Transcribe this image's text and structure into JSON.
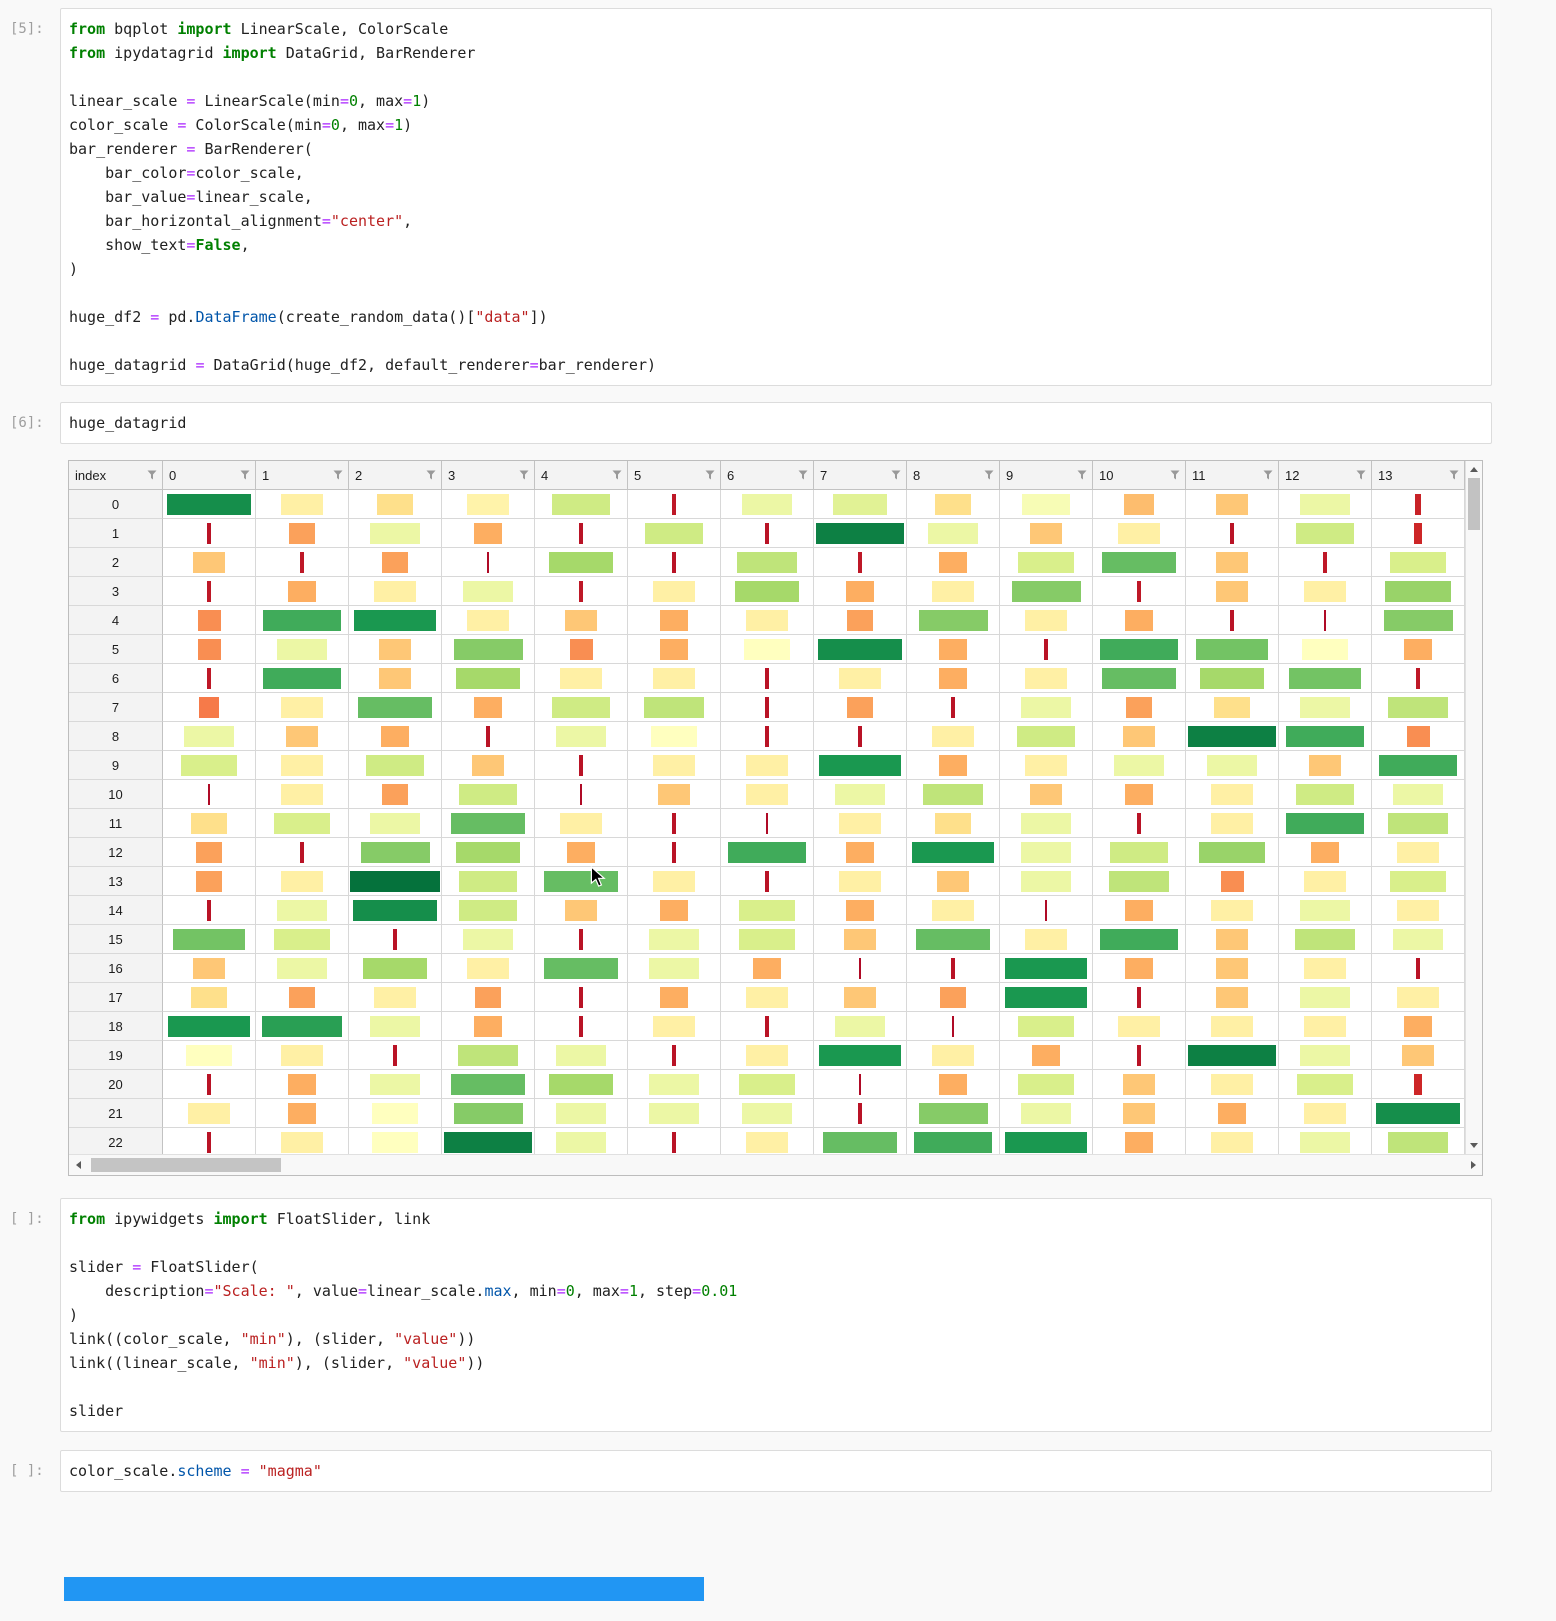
{
  "notebook": {
    "cells": [
      {
        "prompt": "[5]:",
        "lines": [
          [
            [
              "kw",
              "from"
            ],
            [
              "p",
              " bqplot "
            ],
            [
              "kw",
              "import"
            ],
            [
              "p",
              " LinearScale, ColorScale"
            ]
          ],
          [
            [
              "kw",
              "from"
            ],
            [
              "p",
              " ipydatagrid "
            ],
            [
              "kw",
              "import"
            ],
            [
              "p",
              " DataGrid, BarRenderer"
            ]
          ],
          [],
          [
            [
              "p",
              "linear_scale "
            ],
            [
              "op",
              "="
            ],
            [
              "p",
              " LinearScale(min"
            ],
            [
              "op",
              "="
            ],
            [
              "num",
              "0"
            ],
            [
              "p",
              ", max"
            ],
            [
              "op",
              "="
            ],
            [
              "num",
              "1"
            ],
            [
              "p",
              ")"
            ]
          ],
          [
            [
              "p",
              "color_scale "
            ],
            [
              "op",
              "="
            ],
            [
              "p",
              " ColorScale(min"
            ],
            [
              "op",
              "="
            ],
            [
              "num",
              "0"
            ],
            [
              "p",
              ", max"
            ],
            [
              "op",
              "="
            ],
            [
              "num",
              "1"
            ],
            [
              "p",
              ")"
            ]
          ],
          [
            [
              "p",
              "bar_renderer "
            ],
            [
              "op",
              "="
            ],
            [
              "p",
              " BarRenderer("
            ]
          ],
          [
            [
              "p",
              "    bar_color"
            ],
            [
              "op",
              "="
            ],
            [
              "p",
              "color_scale,"
            ]
          ],
          [
            [
              "p",
              "    bar_value"
            ],
            [
              "op",
              "="
            ],
            [
              "p",
              "linear_scale,"
            ]
          ],
          [
            [
              "p",
              "    bar_horizontal_alignment"
            ],
            [
              "op",
              "="
            ],
            [
              "str",
              "\"center\""
            ],
            [
              "p",
              ","
            ]
          ],
          [
            [
              "p",
              "    show_text"
            ],
            [
              "op",
              "="
            ],
            [
              "kw",
              "False"
            ],
            [
              "p",
              ","
            ]
          ],
          [
            [
              "p",
              ")"
            ]
          ],
          [],
          [
            [
              "p",
              "huge_df2 "
            ],
            [
              "op",
              "="
            ],
            [
              "p",
              " pd."
            ],
            [
              "prop",
              "DataFrame"
            ],
            [
              "p",
              "(create_random_data()["
            ],
            [
              "str",
              "\"data\""
            ],
            [
              "p",
              "])"
            ]
          ],
          [],
          [
            [
              "p",
              "huge_datagrid "
            ],
            [
              "op",
              "="
            ],
            [
              "p",
              " DataGrid(huge_df2, default_renderer"
            ],
            [
              "op",
              "="
            ],
            [
              "p",
              "bar_renderer)"
            ]
          ]
        ]
      },
      {
        "prompt": "[6]:",
        "lines": [
          [
            [
              "p",
              "huge_datagrid"
            ]
          ]
        ]
      },
      {
        "prompt": "[ ]:",
        "lines": [
          [
            [
              "kw",
              "from"
            ],
            [
              "p",
              " ipywidgets "
            ],
            [
              "kw",
              "import"
            ],
            [
              "p",
              " FloatSlider, link"
            ]
          ],
          [],
          [
            [
              "p",
              "slider "
            ],
            [
              "op",
              "="
            ],
            [
              "p",
              " FloatSlider("
            ]
          ],
          [
            [
              "p",
              "    description"
            ],
            [
              "op",
              "="
            ],
            [
              "str",
              "\"Scale: \""
            ],
            [
              "p",
              ", value"
            ],
            [
              "op",
              "="
            ],
            [
              "p",
              "linear_scale."
            ],
            [
              "prop",
              "max"
            ],
            [
              "p",
              ", min"
            ],
            [
              "op",
              "="
            ],
            [
              "num",
              "0"
            ],
            [
              "p",
              ", max"
            ],
            [
              "op",
              "="
            ],
            [
              "num",
              "1"
            ],
            [
              "p",
              ", step"
            ],
            [
              "op",
              "="
            ],
            [
              "num",
              "0.01"
            ]
          ],
          [
            [
              "p",
              ")"
            ]
          ],
          [
            [
              "p",
              "link((color_scale, "
            ],
            [
              "str",
              "\"min\""
            ],
            [
              "p",
              "), (slider, "
            ],
            [
              "str",
              "\"value\""
            ],
            [
              "p",
              "))"
            ]
          ],
          [
            [
              "p",
              "link((linear_scale, "
            ],
            [
              "str",
              "\"min\""
            ],
            [
              "p",
              "), (slider, "
            ],
            [
              "str",
              "\"value\""
            ],
            [
              "p",
              "))"
            ]
          ],
          [],
          [
            [
              "p",
              "slider"
            ]
          ]
        ]
      },
      {
        "prompt": "[ ]:",
        "lines": [
          [
            [
              "p",
              "color_scale."
            ],
            [
              "prop",
              "scheme"
            ],
            [
              "p",
              " "
            ],
            [
              "op",
              "="
            ],
            [
              "p",
              " "
            ],
            [
              "str",
              "\"magma\""
            ]
          ]
        ]
      }
    ]
  },
  "datagrid": {
    "corner_header": "index",
    "columns": [
      "0",
      "1",
      "2",
      "3",
      "4",
      "5",
      "6",
      "7",
      "8",
      "9",
      "10",
      "11",
      "12",
      "13"
    ],
    "row_labels": [
      "0",
      "1",
      "2",
      "3",
      "4",
      "5",
      "6",
      "7",
      "8",
      "9",
      "10",
      "11",
      "12",
      "13",
      "14",
      "15",
      "16",
      "17",
      "18",
      "19",
      "20",
      "21",
      "22"
    ],
    "colormap": {
      "name": "RdYlGn",
      "stops": [
        [
          0,
          "#a50026"
        ],
        [
          0.1,
          "#d73027"
        ],
        [
          0.2,
          "#f46d43"
        ],
        [
          0.3,
          "#fdae61"
        ],
        [
          0.4,
          "#fee08b"
        ],
        [
          0.5,
          "#ffffbf"
        ],
        [
          0.6,
          "#d9ef8b"
        ],
        [
          0.7,
          "#a6d96a"
        ],
        [
          0.8,
          "#66bd63"
        ],
        [
          0.9,
          "#1a9850"
        ],
        [
          1,
          "#006837"
        ]
      ]
    },
    "values": [
      [
        0.92,
        0.45,
        0.4,
        0.46,
        0.62,
        0.05,
        0.55,
        0.58,
        0.4,
        0.52,
        0.33,
        0.35,
        0.55,
        0.07
      ],
      [
        0.04,
        0.28,
        0.55,
        0.3,
        0.04,
        0.62,
        0.04,
        0.95,
        0.55,
        0.35,
        0.45,
        0.04,
        0.62,
        0.08
      ],
      [
        0.35,
        0.05,
        0.28,
        0.02,
        0.7,
        0.04,
        0.65,
        0.05,
        0.3,
        0.6,
        0.8,
        0.35,
        0.05,
        0.6
      ],
      [
        0.05,
        0.3,
        0.45,
        0.55,
        0.05,
        0.45,
        0.7,
        0.3,
        0.45,
        0.75,
        0.05,
        0.35,
        0.45,
        0.72
      ],
      [
        0.25,
        0.85,
        0.9,
        0.45,
        0.35,
        0.3,
        0.45,
        0.28,
        0.75,
        0.45,
        0.3,
        0.04,
        0.02,
        0.75
      ],
      [
        0.25,
        0.55,
        0.35,
        0.75,
        0.25,
        0.3,
        0.5,
        0.92,
        0.3,
        0.04,
        0.85,
        0.78,
        0.5,
        0.3
      ],
      [
        0.05,
        0.85,
        0.35,
        0.7,
        0.45,
        0.45,
        0.04,
        0.45,
        0.3,
        0.45,
        0.8,
        0.7,
        0.78,
        0.05
      ],
      [
        0.22,
        0.45,
        0.8,
        0.3,
        0.62,
        0.65,
        0.04,
        0.28,
        0.04,
        0.55,
        0.28,
        0.4,
        0.55,
        0.65
      ],
      [
        0.55,
        0.35,
        0.3,
        0.04,
        0.55,
        0.5,
        0.04,
        0.04,
        0.45,
        0.62,
        0.35,
        0.95,
        0.85,
        0.25
      ],
      [
        0.6,
        0.45,
        0.62,
        0.35,
        0.04,
        0.45,
        0.45,
        0.9,
        0.3,
        0.45,
        0.55,
        0.55,
        0.35,
        0.85
      ],
      [
        0.02,
        0.45,
        0.28,
        0.62,
        0.02,
        0.35,
        0.45,
        0.55,
        0.65,
        0.35,
        0.3,
        0.45,
        0.62,
        0.55
      ],
      [
        0.4,
        0.6,
        0.55,
        0.8,
        0.45,
        0.04,
        0.02,
        0.45,
        0.4,
        0.55,
        0.04,
        0.45,
        0.85,
        0.65
      ],
      [
        0.28,
        0.04,
        0.75,
        0.7,
        0.3,
        0.04,
        0.85,
        0.3,
        0.9,
        0.55,
        0.62,
        0.72,
        0.3,
        0.45
      ],
      [
        0.28,
        0.45,
        0.98,
        0.62,
        0.8,
        0.45,
        0.04,
        0.45,
        0.35,
        0.55,
        0.65,
        0.25,
        0.45,
        0.6
      ],
      [
        0.04,
        0.55,
        0.92,
        0.62,
        0.35,
        0.3,
        0.6,
        0.3,
        0.45,
        0.02,
        0.3,
        0.45,
        0.55,
        0.45
      ],
      [
        0.78,
        0.6,
        0.04,
        0.55,
        0.04,
        0.55,
        0.6,
        0.35,
        0.8,
        0.45,
        0.85,
        0.35,
        0.65,
        0.55
      ],
      [
        0.35,
        0.55,
        0.7,
        0.45,
        0.8,
        0.55,
        0.3,
        0.02,
        0.04,
        0.9,
        0.3,
        0.35,
        0.45,
        0.04
      ],
      [
        0.4,
        0.28,
        0.45,
        0.28,
        0.04,
        0.3,
        0.45,
        0.35,
        0.28,
        0.9,
        0.04,
        0.35,
        0.55,
        0.45
      ],
      [
        0.9,
        0.88,
        0.55,
        0.3,
        0.04,
        0.45,
        0.04,
        0.55,
        0.02,
        0.6,
        0.45,
        0.45,
        0.45,
        0.3
      ],
      [
        0.5,
        0.45,
        0.04,
        0.65,
        0.55,
        0.04,
        0.45,
        0.9,
        0.45,
        0.3,
        0.04,
        0.95,
        0.55,
        0.35
      ],
      [
        0.04,
        0.3,
        0.55,
        0.8,
        0.7,
        0.55,
        0.6,
        0.02,
        0.3,
        0.6,
        0.35,
        0.45,
        0.6,
        0.08
      ],
      [
        0.45,
        0.3,
        0.5,
        0.75,
        0.55,
        0.55,
        0.55,
        0.04,
        0.75,
        0.55,
        0.35,
        0.3,
        0.45,
        0.92
      ],
      [
        0.04,
        0.45,
        0.5,
        0.95,
        0.55,
        0.04,
        0.45,
        0.8,
        0.85,
        0.9,
        0.3,
        0.45,
        0.55,
        0.65
      ]
    ]
  },
  "widget": {
    "slider_bar_color": "#2196f3"
  }
}
